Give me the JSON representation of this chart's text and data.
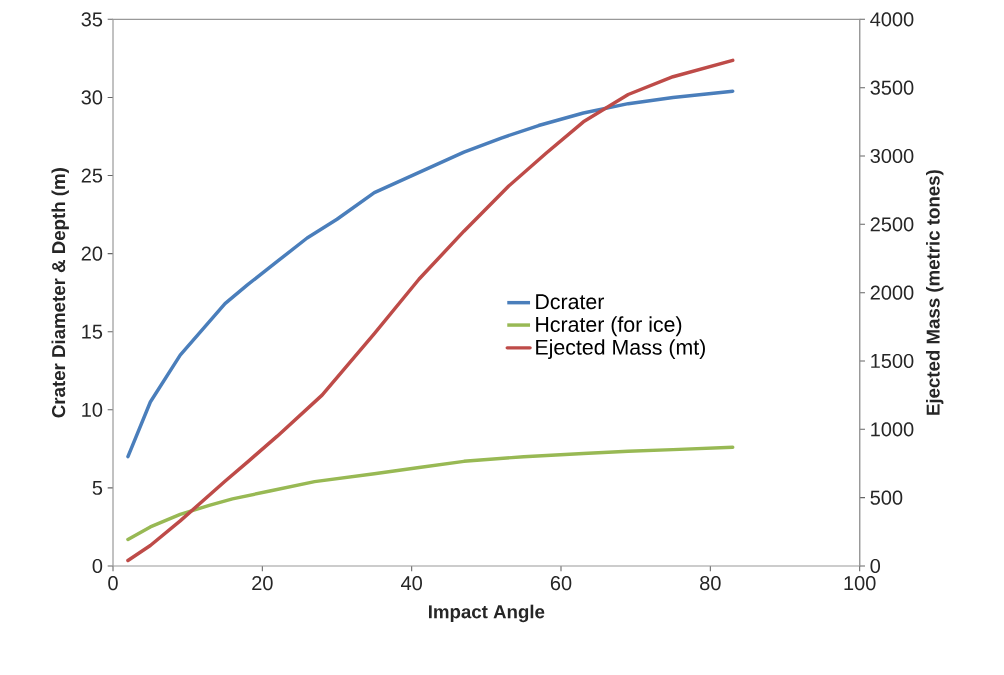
{
  "chart_data": {
    "type": "line",
    "xlabel": "Impact Angle",
    "ylabel": "Crater Diameter & Depth (m)",
    "y2label": "Ejected Mass (metric tones)",
    "xlim": [
      0,
      100
    ],
    "xticks": [
      0,
      20,
      40,
      60,
      80,
      100
    ],
    "ylim": [
      0,
      35
    ],
    "yticks": [
      0,
      5,
      10,
      15,
      20,
      25,
      30,
      35
    ],
    "y2lim": [
      0,
      4000
    ],
    "y2ticks": [
      0,
      500,
      1000,
      1500,
      2000,
      2500,
      3000,
      3500,
      4000
    ],
    "legend": "right",
    "grid": false,
    "series": [
      {
        "name": "Dcrater",
        "color": "#4a7ebb",
        "axis": "y",
        "x": [
          2,
          5,
          9,
          15,
          18,
          22,
          26,
          30,
          35,
          41,
          47,
          52,
          57,
          63,
          69,
          75,
          83
        ],
        "values": [
          7,
          10.5,
          13.5,
          16.8,
          18,
          19.5,
          21,
          22.2,
          23.9,
          25.2,
          26.5,
          27.4,
          28.2,
          29,
          29.6,
          30,
          30.4
        ]
      },
      {
        "name": "Hcrater (for ice)",
        "color": "#98b954",
        "axis": "y",
        "x": [
          2,
          5,
          9,
          13,
          16,
          21,
          27,
          35,
          41,
          47,
          55,
          63,
          69,
          75,
          83
        ],
        "values": [
          1.7,
          2.5,
          3.3,
          3.9,
          4.3,
          4.8,
          5.4,
          5.9,
          6.3,
          6.7,
          7,
          7.2,
          7.35,
          7.45,
          7.6
        ]
      },
      {
        "name": "Ejected Mass (mt)",
        "color": "#be4b48",
        "axis": "y2",
        "x": [
          2,
          5,
          9,
          15,
          18,
          22,
          28,
          35,
          41,
          47,
          53,
          58,
          63,
          69,
          75,
          83
        ],
        "values": [
          40,
          150,
          330,
          620,
          760,
          950,
          1250,
          1700,
          2100,
          2450,
          2780,
          3020,
          3250,
          3450,
          3580,
          3700
        ]
      }
    ]
  }
}
